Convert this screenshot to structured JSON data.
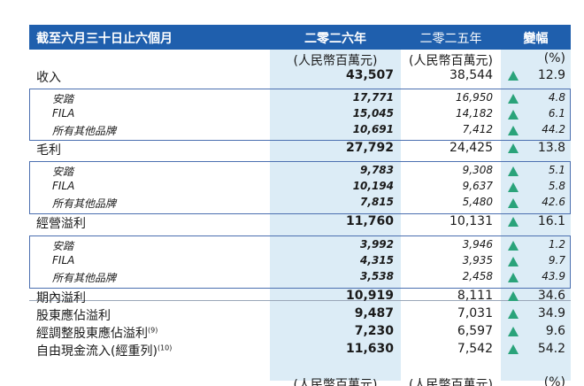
{
  "header": {
    "label": "截至六月三十日止六個月",
    "year_2026": "二零二六年",
    "year_2025": "二零二五年",
    "change": "變幅"
  },
  "units": {
    "y2026": "(人民幣百萬元)",
    "y2025": "(人民幣百萬元)",
    "change": "(%)"
  },
  "rows": [
    {
      "label": "收入",
      "v2026": "43,507",
      "v2025": "38,544",
      "change": "12.9"
    },
    {
      "label": "安踏",
      "v2026": "17,771",
      "v2025": "16,950",
      "change": "4.8"
    },
    {
      "label": "FILA",
      "v2026": "15,045",
      "v2025": "14,182",
      "change": "6.1"
    },
    {
      "label": "所有其他品牌",
      "v2026": "10,691",
      "v2025": "7,412",
      "change": "44.2"
    },
    {
      "label": "毛利",
      "v2026": "27,792",
      "v2025": "24,425",
      "change": "13.8"
    },
    {
      "label": "安踏",
      "v2026": "9,783",
      "v2025": "9,308",
      "change": "5.1"
    },
    {
      "label": "FILA",
      "v2026": "10,194",
      "v2025": "9,637",
      "change": "5.8"
    },
    {
      "label": "所有其他品牌",
      "v2026": "7,815",
      "v2025": "5,480",
      "change": "42.6"
    },
    {
      "label": "經營溢利",
      "v2026": "11,760",
      "v2025": "10,131",
      "change": "16.1"
    },
    {
      "label": "安踏",
      "v2026": "3,992",
      "v2025": "3,946",
      "change": "1.2"
    },
    {
      "label": "FILA",
      "v2026": "4,315",
      "v2025": "3,935",
      "change": "9.7"
    },
    {
      "label": "所有其他品牌",
      "v2026": "3,538",
      "v2025": "2,458",
      "change": "43.9"
    },
    {
      "label": "期內溢利",
      "v2026": "10,919",
      "v2025": "8,111",
      "change": "34.6"
    },
    {
      "label": "股東應佔溢利",
      "v2026": "9,487",
      "v2025": "7,031",
      "change": "34.9"
    },
    {
      "label": "經調整股東應佔溢利",
      "note": "(9)",
      "v2026": "7,230",
      "v2025": "6,597",
      "change": "9.6"
    },
    {
      "label": "自由現金流入(經重列)",
      "note": "(10)",
      "v2026": "11,630",
      "v2025": "7,542",
      "change": "54.2"
    }
  ],
  "cut_row": {
    "y2026": "(人民幣百萬元)",
    "y2025": "(人民幣百萬元)",
    "change": "(%)"
  },
  "colors": {
    "header_bg": "#1f5fad",
    "column_highlight": "#dcecf6",
    "up_arrow": "#2aa37a"
  }
}
